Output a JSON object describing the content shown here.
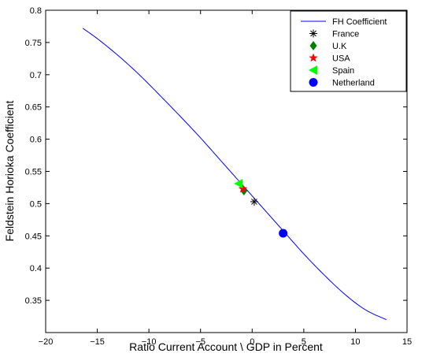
{
  "chart_data": {
    "type": "line",
    "xlabel": "Ratio Current Account \\ GDP in Percent",
    "ylabel": "Feldstein Horioka Coefficient",
    "xlim": [
      -20,
      15
    ],
    "ylim": [
      0.3,
      0.8
    ],
    "xticks": [
      -20,
      -15,
      -10,
      -5,
      0,
      5,
      10,
      15
    ],
    "yticks": [
      0.35,
      0.4,
      0.45,
      0.5,
      0.55,
      0.6,
      0.65,
      0.7,
      0.75,
      0.8
    ],
    "xtick_labels": [
      "−20",
      "−15",
      "−10",
      "−5",
      "0",
      "5",
      "10",
      "15"
    ],
    "ytick_labels": [
      "0.35",
      "0.4",
      "0.45",
      "0.5",
      "0.55",
      "0.6",
      "0.65",
      "0.7",
      "0.75",
      "0.8"
    ],
    "legend_position": "top-right",
    "grid": false,
    "series": [
      {
        "name": "FH Coefficient",
        "marker": "line",
        "color": "#0000ff",
        "x": [
          -16.4,
          -15,
          -13,
          -11,
          -9,
          -7,
          -5,
          -3,
          -1,
          1,
          3,
          5,
          7,
          9,
          11,
          13
        ],
        "y": [
          0.772,
          0.756,
          0.73,
          0.701,
          0.669,
          0.636,
          0.602,
          0.566,
          0.53,
          0.494,
          0.458,
          0.422,
          0.389,
          0.359,
          0.335,
          0.32
        ]
      },
      {
        "name": "France",
        "marker": "asterisk",
        "color": "#000000",
        "x": [
          0.2
        ],
        "y": [
          0.503
        ]
      },
      {
        "name": "U.K",
        "marker": "diamond",
        "color": "#008000",
        "x": [
          -0.8
        ],
        "y": [
          0.52
        ]
      },
      {
        "name": "USA",
        "marker": "star",
        "color": "#ff0000",
        "x": [
          -0.9
        ],
        "y": [
          0.523
        ]
      },
      {
        "name": "Spain",
        "marker": "triangle-left",
        "color": "#00ff00",
        "x": [
          -1.3
        ],
        "y": [
          0.531
        ]
      },
      {
        "name": "Netherland",
        "marker": "circle",
        "color": "#0000ff",
        "x": [
          3.0
        ],
        "y": [
          0.454
        ]
      }
    ]
  }
}
